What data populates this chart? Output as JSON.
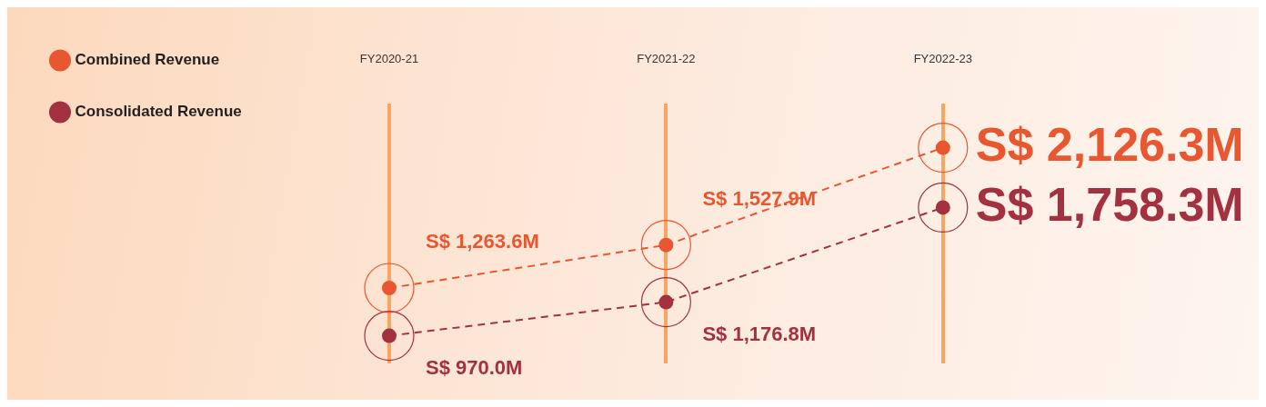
{
  "chart_data": {
    "type": "line",
    "categories": [
      "FY2020-21",
      "FY2021-22",
      "FY2022-23"
    ],
    "series": [
      {
        "name": "Combined Revenue",
        "color": "#e8572f",
        "values": [
          1263600000,
          1527900000,
          2126300000
        ],
        "value_labels": [
          "S$ 1,263.6M",
          "S$ 1,527.9M",
          "S$ 2,126.3M"
        ]
      },
      {
        "name": "Consolidated Revenue",
        "color": "#a3313f",
        "values": [
          970000000,
          1176800000,
          1758300000
        ],
        "value_labels": [
          "S$ 970.0M",
          "S$ 1,176.8M",
          "S$ 1,758.3M"
        ]
      }
    ],
    "tick_labels": "x",
    "grid": "x",
    "legend": "left",
    "marker": "circle",
    "line_style": "dashed"
  }
}
